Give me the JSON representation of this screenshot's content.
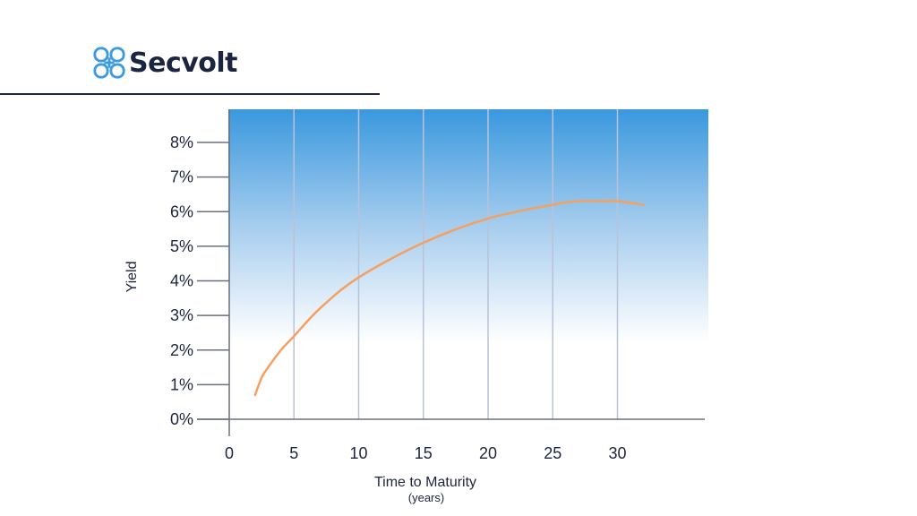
{
  "brand": {
    "name": "Secvolt",
    "logo_icon": "quatrefoil-knot-icon",
    "logo_color": "#3d9be0",
    "text_color": "#1c2540"
  },
  "chart_data": {
    "type": "line",
    "title": "",
    "xlabel": "Time to Maturity",
    "xlabel_sub": "(years)",
    "ylabel": "Yield",
    "xlim": [
      0,
      37
    ],
    "ylim": [
      0,
      9
    ],
    "x_ticks": [
      0,
      5,
      10,
      15,
      20,
      25,
      30
    ],
    "x_tick_labels": [
      "0",
      "5",
      "10",
      "15",
      "20",
      "25",
      "30"
    ],
    "y_ticks": [
      0,
      1,
      2,
      3,
      4,
      5,
      6,
      7,
      8
    ],
    "y_tick_labels": [
      "0%",
      "1%",
      "2%",
      "3%",
      "4%",
      "5%",
      "6%",
      "7%",
      "8%"
    ],
    "grid": "vertical",
    "legend": "none",
    "background_gradient": [
      "#3a98de",
      "#ffffff"
    ],
    "series": [
      {
        "color": "#f5a060",
        "x": [
          2,
          2.5,
          3,
          4,
          5,
          7,
          10,
          15,
          20,
          25,
          27,
          29,
          30,
          32
        ],
        "y": [
          0.7,
          1.2,
          1.5,
          2.0,
          2.4,
          3.2,
          4.1,
          5.1,
          5.8,
          6.2,
          6.3,
          6.3,
          6.3,
          6.2
        ]
      }
    ]
  }
}
